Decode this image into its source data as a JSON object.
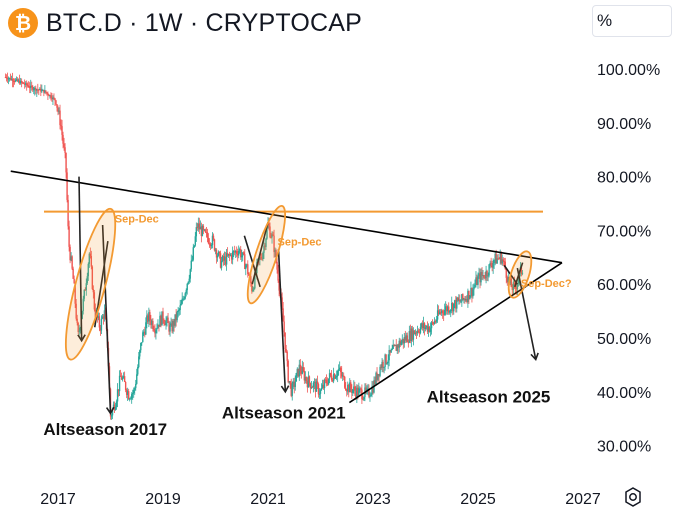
{
  "header": {
    "title": "BTC.D · 1W · CRYPTOCAP",
    "logo_glyph": "₿",
    "logo_name": "bitcoin-logo",
    "unit_label": "%"
  },
  "colors": {
    "up": "#26a69a",
    "down": "#ef5350",
    "trendline": "#000000",
    "resistance": "#f39a32",
    "annotation": "#f39a32",
    "axis_text": "#131722"
  },
  "chart_data": {
    "type": "candlestick",
    "title": "BTC.D · 1W · CRYPTOCAP",
    "ylabel": "%",
    "ylim": [
      24,
      104
    ],
    "xlim": [
      2016.0,
      2027.5
    ],
    "y_ticks": [
      "100.00%",
      "90.00%",
      "80.00%",
      "70.00%",
      "60.00%",
      "50.00%",
      "40.00%",
      "30.00%"
    ],
    "y_tick_values": [
      100,
      90,
      80,
      70,
      60,
      50,
      40,
      30
    ],
    "x_ticks": [
      "2017",
      "2019",
      "2021",
      "2023",
      "2025",
      "2027"
    ],
    "x_tick_values": [
      2017,
      2019,
      2021,
      2023,
      2025,
      2027
    ],
    "price_path": [
      [
        2016.0,
        98.5
      ],
      [
        2016.3,
        97.5
      ],
      [
        2016.5,
        96.5
      ],
      [
        2016.75,
        95.8
      ],
      [
        2016.95,
        94.2
      ],
      [
        2017.05,
        90.0
      ],
      [
        2017.15,
        82.0
      ],
      [
        2017.2,
        68.0
      ],
      [
        2017.3,
        60.0
      ],
      [
        2017.38,
        50.0
      ],
      [
        2017.5,
        58.0
      ],
      [
        2017.6,
        66.0
      ],
      [
        2017.7,
        55.0
      ],
      [
        2017.8,
        52.0
      ],
      [
        2017.88,
        55.0
      ],
      [
        2017.95,
        48.0
      ],
      [
        2018.0,
        35.5
      ],
      [
        2018.1,
        38.5
      ],
      [
        2018.2,
        43.0
      ],
      [
        2018.35,
        39.5
      ],
      [
        2018.45,
        40.0
      ],
      [
        2018.6,
        50.0
      ],
      [
        2018.72,
        54.0
      ],
      [
        2018.85,
        52.0
      ],
      [
        2019.0,
        54.0
      ],
      [
        2019.15,
        51.5
      ],
      [
        2019.35,
        56.0
      ],
      [
        2019.55,
        64.0
      ],
      [
        2019.65,
        71.0
      ],
      [
        2019.8,
        69.0
      ],
      [
        2019.95,
        68.0
      ],
      [
        2020.1,
        64.0
      ],
      [
        2020.25,
        65.0
      ],
      [
        2020.45,
        66.5
      ],
      [
        2020.6,
        63.0
      ],
      [
        2020.7,
        59.0
      ],
      [
        2020.8,
        63.5
      ],
      [
        2020.9,
        66.0
      ],
      [
        2021.0,
        71.0
      ],
      [
        2021.1,
        68.0
      ],
      [
        2021.2,
        61.0
      ],
      [
        2021.3,
        52.0
      ],
      [
        2021.38,
        43.0
      ],
      [
        2021.45,
        40.0
      ],
      [
        2021.6,
        44.5
      ],
      [
        2021.75,
        42.0
      ],
      [
        2021.9,
        41.0
      ],
      [
        2022.0,
        40.0
      ],
      [
        2022.15,
        42.5
      ],
      [
        2022.35,
        44.0
      ],
      [
        2022.5,
        41.0
      ],
      [
        2022.7,
        40.0
      ],
      [
        2022.9,
        39.5
      ],
      [
        2023.0,
        41.0
      ],
      [
        2023.15,
        45.0
      ],
      [
        2023.3,
        46.5
      ],
      [
        2023.5,
        49.0
      ],
      [
        2023.7,
        50.5
      ],
      [
        2023.9,
        52.0
      ],
      [
        2024.1,
        52.0
      ],
      [
        2024.3,
        55.0
      ],
      [
        2024.5,
        56.0
      ],
      [
        2024.7,
        57.0
      ],
      [
        2024.9,
        59.0
      ],
      [
        2025.0,
        61.0
      ],
      [
        2025.15,
        62.0
      ],
      [
        2025.3,
        64.5
      ],
      [
        2025.45,
        65.0
      ],
      [
        2025.5,
        63.5
      ],
      [
        2025.6,
        60.0
      ],
      [
        2025.7,
        59.0
      ],
      [
        2025.78,
        61.5
      ],
      [
        2025.85,
        63.0
      ]
    ],
    "resistance_level": 73.5,
    "trendlines": [
      {
        "name": "upper-trendline",
        "from": [
          2016.1,
          81.0
        ],
        "to": [
          2026.6,
          64.0
        ]
      },
      {
        "name": "lower-trendline",
        "from": [
          2022.55,
          38.0
        ],
        "to": [
          2026.6,
          64.0
        ]
      }
    ],
    "drawn_lines": [
      {
        "name": "drop-line-2017",
        "from": [
          2017.4,
          80.0
        ],
        "to": [
          2017.45,
          49.5
        ]
      },
      {
        "name": "drop-line-2018",
        "from": [
          2017.85,
          71.0
        ],
        "to": [
          2018.0,
          36.0
        ]
      },
      {
        "name": "drop-line-2021",
        "from": [
          2021.2,
          66.5
        ],
        "to": [
          2021.33,
          40.0
        ]
      },
      {
        "name": "drop-line-2025",
        "from": [
          2025.75,
          63.0
        ],
        "to": [
          2026.1,
          46.0
        ]
      },
      {
        "name": "pencil-2017",
        "from": [
          2017.7,
          52.0
        ],
        "to": [
          2017.95,
          68.0
        ]
      },
      {
        "name": "pencil-2020",
        "from": [
          2020.55,
          69.0
        ],
        "to": [
          2020.85,
          59.5
        ]
      },
      {
        "name": "pencil-2021",
        "from": [
          2020.7,
          60.0
        ],
        "to": [
          2021.0,
          71.5
        ]
      },
      {
        "name": "pencil-2025a",
        "from": [
          2025.5,
          63.5
        ],
        "to": [
          2025.75,
          60.0
        ]
      },
      {
        "name": "pencil-2025b",
        "from": [
          2025.7,
          59.5
        ],
        "to": [
          2025.85,
          64.0
        ]
      }
    ],
    "highlight_ellipses": [
      {
        "name": "ellipse-2017",
        "center": [
          2017.62,
          60.0
        ],
        "rx_years": 0.28,
        "ry_pct": 14.5,
        "tilt_deg": 15
      },
      {
        "name": "ellipse-2021",
        "center": [
          2020.97,
          65.5
        ],
        "rx_years": 0.2,
        "ry_pct": 9.5,
        "tilt_deg": 18
      },
      {
        "name": "ellipse-2025",
        "center": [
          2025.8,
          61.8
        ],
        "rx_years": 0.17,
        "ry_pct": 4.5,
        "tilt_deg": 18
      }
    ],
    "annotations": [
      {
        "text": "Altseason 2017",
        "x": 2017.9,
        "y": 32.0,
        "style": "bold"
      },
      {
        "text": "Altseason 2021",
        "x": 2021.3,
        "y": 35.0,
        "style": "bold"
      },
      {
        "text": "Altseason 2025",
        "x": 2025.2,
        "y": 38.0,
        "style": "bold"
      },
      {
        "text": "Sep-Dec",
        "x": 2018.5,
        "y": 71.5,
        "style": "orange"
      },
      {
        "text": "Sep-Dec",
        "x": 2021.6,
        "y": 67.2,
        "style": "orange"
      },
      {
        "text": "Sep-Dec?",
        "x": 2026.3,
        "y": 59.5,
        "style": "orange"
      }
    ]
  }
}
